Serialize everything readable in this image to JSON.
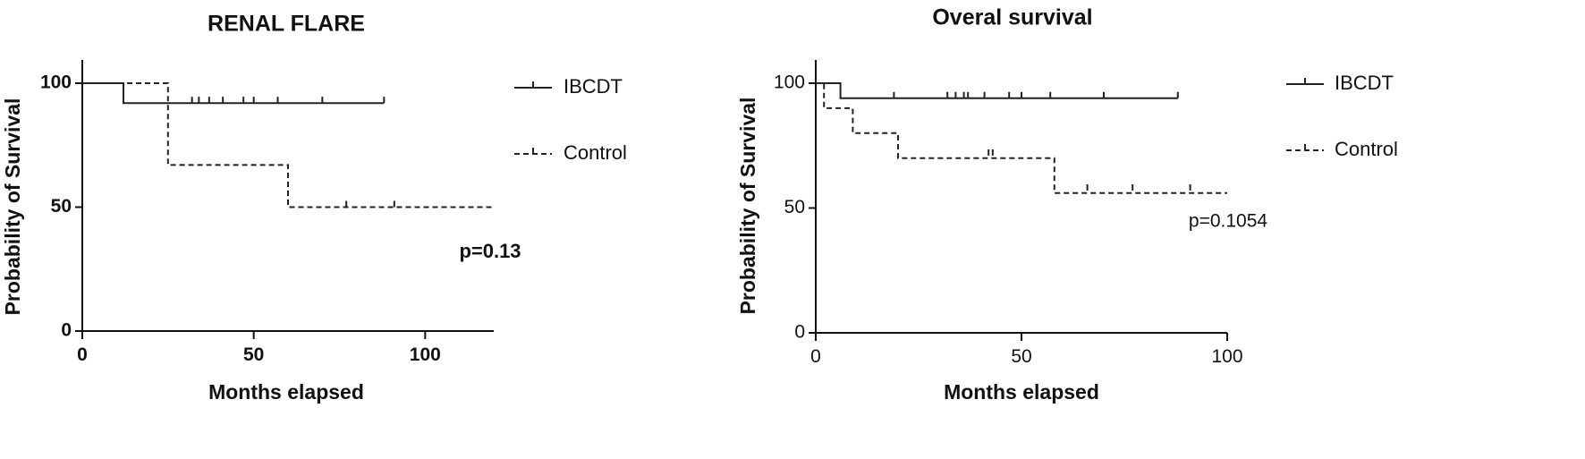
{
  "chart_data": [
    {
      "type": "line",
      "subtype": "kaplan-meier-step",
      "title": "RENAL FLARE",
      "xlabel": "Months elapsed",
      "ylabel": "Probability of Survival",
      "xlim": [
        0,
        120
      ],
      "ylim": [
        0,
        100
      ],
      "xticks": [
        0,
        50,
        100
      ],
      "yticks": [
        0,
        50,
        100
      ],
      "grid": false,
      "legend_position": "right",
      "annotation": "p=0.13",
      "series": [
        {
          "name": "IBCDT",
          "dash": "solid",
          "steps": [
            [
              0,
              100
            ],
            [
              12,
              100
            ],
            [
              12,
              92
            ],
            [
              88,
              92
            ]
          ],
          "censored": [
            [
              32,
              92
            ],
            [
              34,
              92
            ],
            [
              37,
              92
            ],
            [
              41,
              92
            ],
            [
              47,
              92
            ],
            [
              50,
              92
            ],
            [
              57,
              92
            ],
            [
              70,
              92
            ],
            [
              88,
              92
            ]
          ]
        },
        {
          "name": "Control",
          "dash": "dashed",
          "steps": [
            [
              0,
              100
            ],
            [
              25,
              100
            ],
            [
              25,
              67
            ],
            [
              60,
              67
            ],
            [
              60,
              50
            ],
            [
              120,
              50
            ]
          ],
          "censored": [
            [
              77,
              50
            ],
            [
              91,
              50
            ]
          ]
        }
      ]
    },
    {
      "type": "line",
      "subtype": "kaplan-meier-step",
      "title": "Overal survival",
      "xlabel": "Months elapsed",
      "ylabel": "Probability of Survival",
      "xlim": [
        0,
        100
      ],
      "ylim": [
        0,
        100
      ],
      "xticks": [
        0,
        50,
        100
      ],
      "yticks": [
        0,
        50,
        100
      ],
      "grid": false,
      "legend_position": "right",
      "annotation": "p=0.1054",
      "series": [
        {
          "name": "IBCDT",
          "dash": "solid",
          "steps": [
            [
              0,
              100
            ],
            [
              6,
              100
            ],
            [
              6,
              94
            ],
            [
              88,
              94
            ]
          ],
          "censored": [
            [
              19,
              94
            ],
            [
              32,
              94
            ],
            [
              34,
              94
            ],
            [
              36,
              94
            ],
            [
              37,
              94
            ],
            [
              41,
              94
            ],
            [
              47,
              94
            ],
            [
              50,
              94
            ],
            [
              57,
              94
            ],
            [
              70,
              94
            ],
            [
              88,
              94
            ]
          ]
        },
        {
          "name": "Control",
          "dash": "dashed",
          "steps": [
            [
              0,
              100
            ],
            [
              2,
              100
            ],
            [
              2,
              90
            ],
            [
              9,
              90
            ],
            [
              9,
              80
            ],
            [
              20,
              80
            ],
            [
              20,
              70
            ],
            [
              58,
              70
            ],
            [
              58,
              56
            ],
            [
              100,
              56
            ]
          ],
          "censored": [
            [
              42,
              71
            ],
            [
              43,
              71
            ],
            [
              66,
              57
            ],
            [
              77,
              57
            ],
            [
              91,
              57
            ]
          ]
        }
      ]
    }
  ]
}
